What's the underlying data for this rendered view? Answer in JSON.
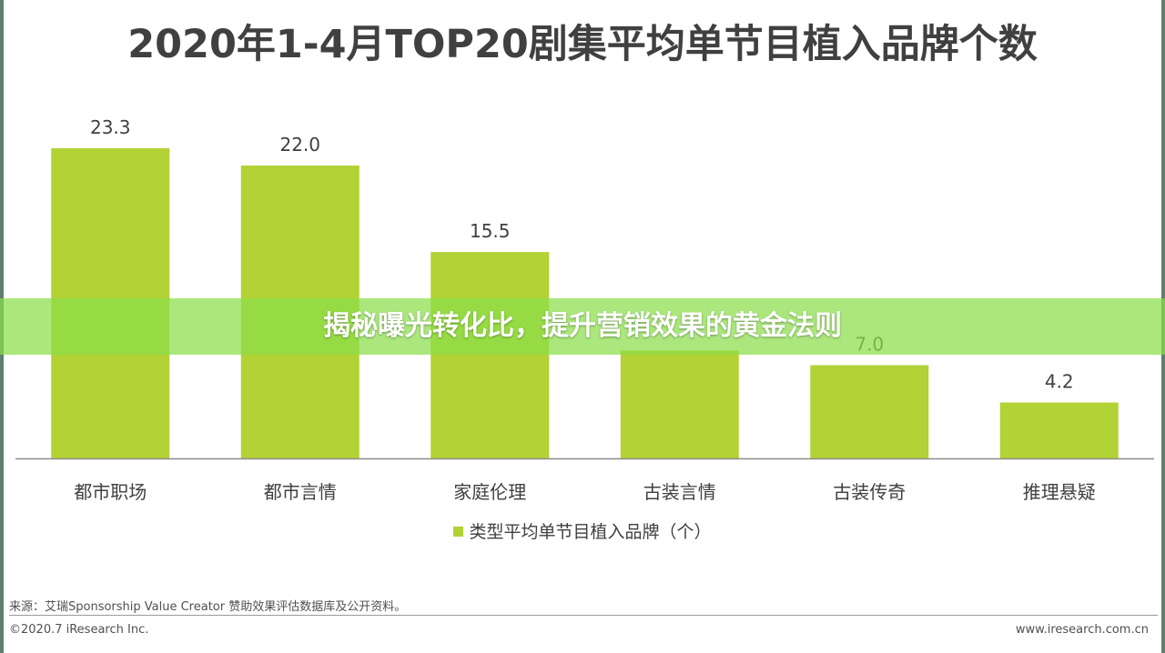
{
  "chart_data": {
    "type": "bar",
    "title": "2020年1-4月TOP20剧集平均单节目植入品牌个数",
    "categories": [
      "都市职场",
      "都市言情",
      "家庭伦理",
      "古装言情",
      "古装传奇",
      "推理悬疑"
    ],
    "series": [
      {
        "name": "类型平均单节目植入品牌（个）",
        "values": [
          23.3,
          22.0,
          15.5,
          8.1,
          7.0,
          4.2
        ],
        "value_labels": [
          "23.3",
          "22.0",
          "15.5",
          "",
          "7.0",
          "4.2"
        ],
        "color": "#b2d235"
      }
    ],
    "ylim": [
      0,
      25
    ],
    "xlabel": "",
    "ylabel": "",
    "grid": false,
    "legend_position": "bottom-center"
  },
  "overlay": {
    "headline": "揭秘曝光转化比，提升营销效果的黄金法则"
  },
  "footer": {
    "source": "来源：艾瑞Sponsorship Value Creator 赞助效果评估数据库及公开资料。",
    "copyright": "©2020.7 iResearch Inc.",
    "website": "www.iresearch.com.cn"
  },
  "colors": {
    "bar": "#b2d235",
    "overlay": "#8ade4a",
    "axis": "#8c8c8c",
    "text": "#404040"
  }
}
